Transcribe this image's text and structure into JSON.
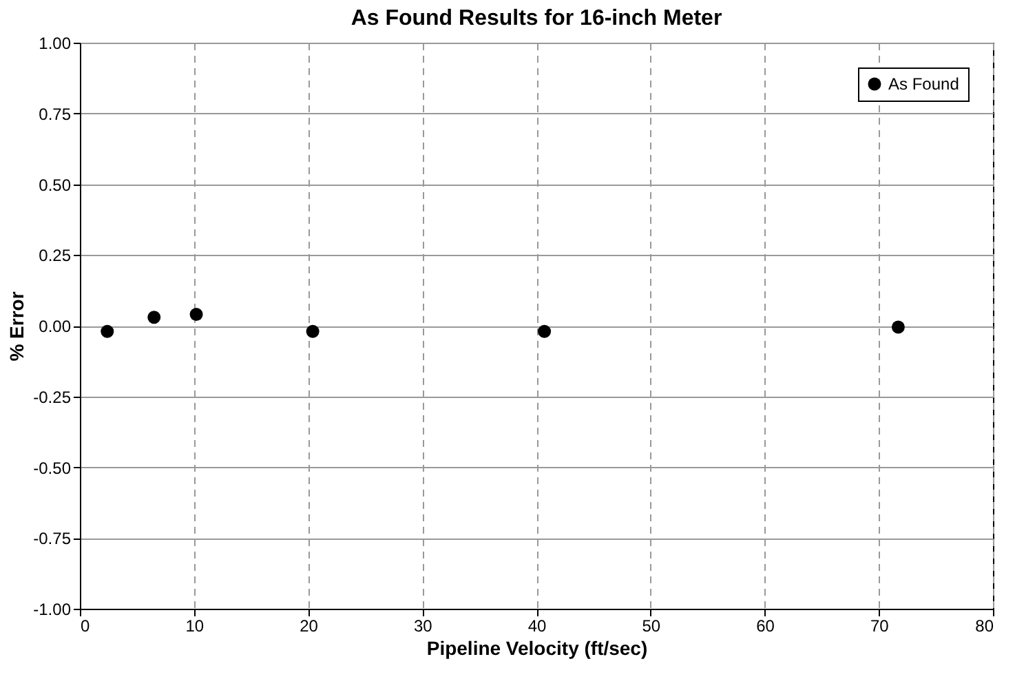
{
  "chart_data": {
    "type": "scatter",
    "title": "As Found Results for 16-inch Meter",
    "xlabel": "Pipeline Velocity (ft/sec)",
    "ylabel": "% Error",
    "series": [
      {
        "name": "As Found",
        "color": "#000000",
        "x": [
          2.4,
          6.5,
          10.2,
          20.4,
          40.7,
          71.7
        ],
        "values": [
          -0.02,
          0.03,
          0.04,
          -0.02,
          -0.02,
          -0.005
        ]
      }
    ],
    "xlim": [
      0,
      80
    ],
    "xticks": [
      0,
      10,
      20,
      30,
      40,
      50,
      60,
      70,
      80
    ],
    "ylim": [
      -1,
      1
    ],
    "yticks": [
      {
        "value": -1,
        "label": "-1.00"
      },
      {
        "value": -0.75,
        "label": "-0.75"
      },
      {
        "value": -0.5,
        "label": "-0.50"
      },
      {
        "value": -0.25,
        "label": "-0.25"
      },
      {
        "value": 0,
        "label": "0.00"
      },
      {
        "value": 0.25,
        "label": "0.25"
      },
      {
        "value": 0.5,
        "label": "0.50"
      },
      {
        "value": 0.75,
        "label": "0.75"
      },
      {
        "value": 1,
        "label": "1.00"
      }
    ],
    "grid": true,
    "legend": "top right",
    "marker": "circle"
  }
}
